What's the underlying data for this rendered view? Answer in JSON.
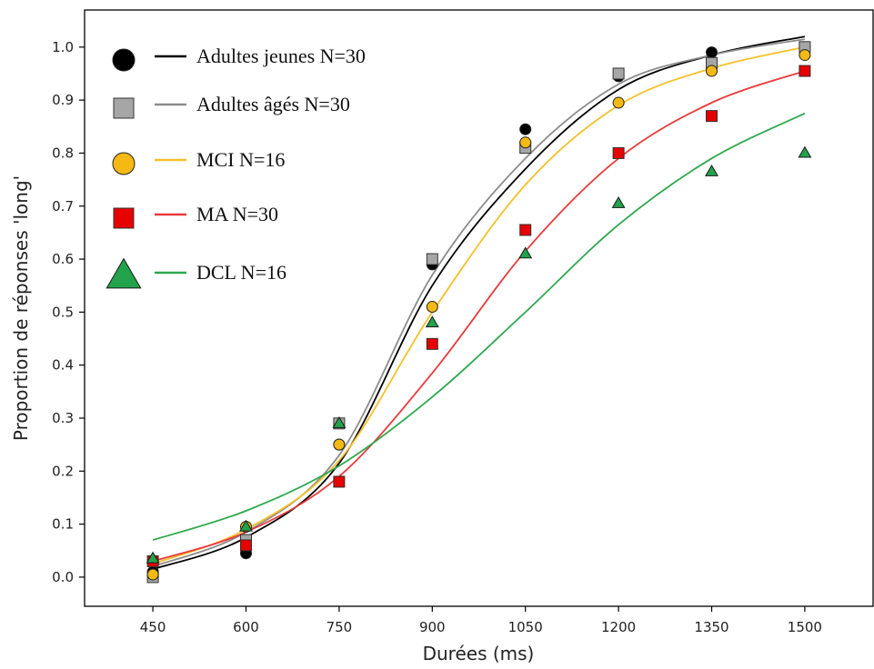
{
  "chart_data": {
    "type": "scatter",
    "xlabel": "Durées (ms)",
    "ylabel": "Proportion de réponses 'long'",
    "xlim": [
      340,
      1610
    ],
    "ylim": [
      -0.055,
      1.07
    ],
    "xticks": [
      450,
      600,
      750,
      900,
      1050,
      1200,
      1350,
      1500
    ],
    "yticks": [
      0.0,
      0.1,
      0.2,
      0.3,
      0.4,
      0.5,
      0.6,
      0.7,
      0.8,
      0.9,
      1.0
    ],
    "ytick_labels": [
      "0.0",
      "0.1",
      "0.2",
      "0.3",
      "0.4",
      "0.5",
      "0.6",
      "0.7",
      "0.8",
      "0.9",
      "1.0"
    ],
    "legend_position": "upper-left",
    "x": [
      450,
      600,
      750,
      900,
      1050,
      1200,
      1350,
      1500
    ],
    "series": [
      {
        "name": "Adultes jeunes N=30",
        "marker": "circle",
        "marker_color": "#000000",
        "line_color": "#000000",
        "values": [
          0.01,
          0.045,
          0.25,
          0.59,
          0.845,
          0.945,
          0.99,
          1.0
        ],
        "fit_values": [
          0.015,
          0.075,
          0.215,
          0.55,
          0.77,
          0.92,
          0.985,
          1.02
        ]
      },
      {
        "name": "Adultes âgés N=30",
        "marker": "square",
        "marker_color": "#a6a6a6",
        "line_color": "#8c8c8c",
        "values": [
          0.0,
          0.07,
          0.29,
          0.6,
          0.81,
          0.95,
          0.97,
          1.0
        ],
        "fit_values": [
          0.02,
          0.085,
          0.23,
          0.57,
          0.79,
          0.93,
          0.985,
          1.015
        ]
      },
      {
        "name": "MCI N=16",
        "marker": "circle",
        "marker_color": "#f5b914",
        "line_color": "#f5c02a",
        "values": [
          0.005,
          0.095,
          0.25,
          0.51,
          0.82,
          0.895,
          0.955,
          0.985
        ],
        "fit_values": [
          0.025,
          0.09,
          0.22,
          0.5,
          0.74,
          0.89,
          0.96,
          1.0
        ]
      },
      {
        "name": "MA  N=30",
        "marker": "square",
        "marker_color": "#e60000",
        "line_color": "#e83a3a",
        "values": [
          0.03,
          0.06,
          0.18,
          0.44,
          0.655,
          0.8,
          0.87,
          0.955
        ],
        "fit_values": [
          0.03,
          0.085,
          0.19,
          0.385,
          0.615,
          0.79,
          0.895,
          0.955
        ]
      },
      {
        "name": "DCL N=16",
        "marker": "triangle",
        "marker_color": "#22a24a",
        "line_color": "#2ea84f",
        "values": [
          0.035,
          0.095,
          0.29,
          0.48,
          0.61,
          0.705,
          0.765,
          0.8
        ],
        "fit_values": [
          0.07,
          0.125,
          0.21,
          0.34,
          0.5,
          0.665,
          0.79,
          0.875
        ]
      }
    ]
  }
}
